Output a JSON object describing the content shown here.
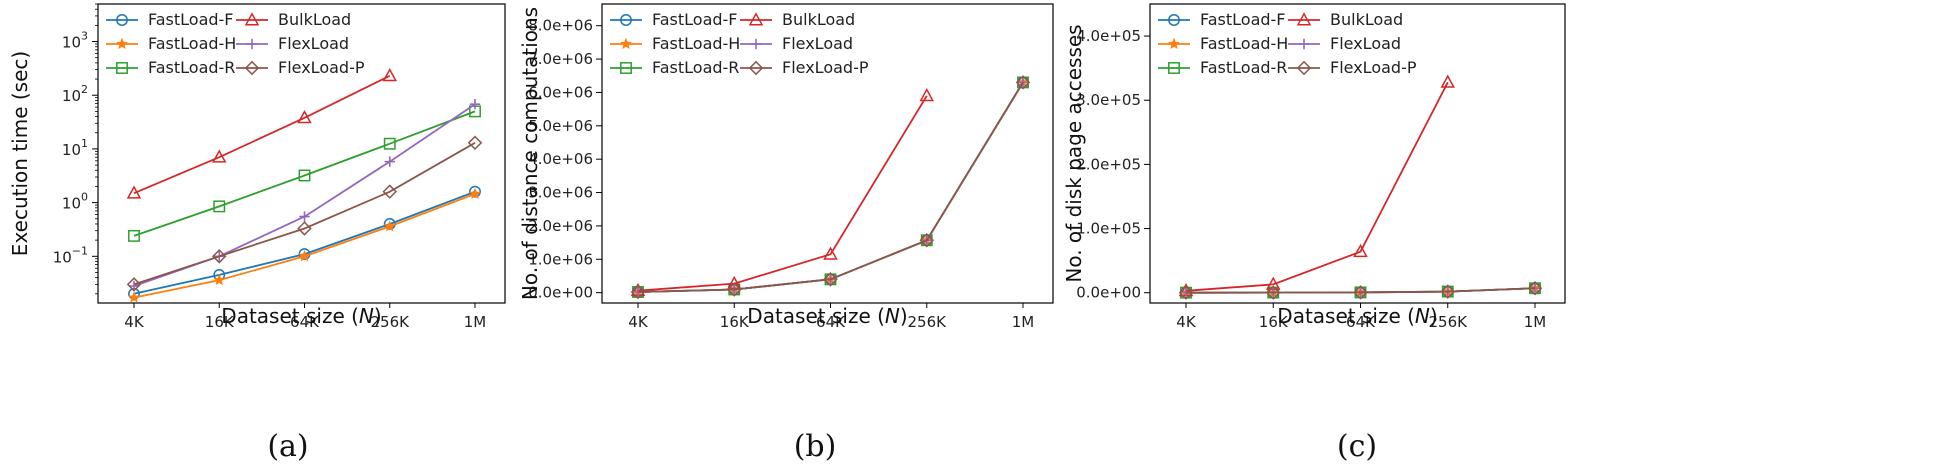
{
  "chart_data": [
    {
      "type": "line",
      "yscale": "log",
      "panel_caption": "(a)",
      "xlabel": "Dataset size (N)",
      "ylabel": "Execution time (sec)",
      "categories": [
        "4K",
        "16K",
        "64K",
        "256K",
        "1M"
      ],
      "yticks": [
        {
          "value": 0.1,
          "mantissa": "10",
          "exp": "−1"
        },
        {
          "value": 1,
          "mantissa": "10",
          "exp": "0"
        },
        {
          "value": 10,
          "mantissa": "10",
          "exp": "1"
        },
        {
          "value": 100,
          "mantissa": "10",
          "exp": "2"
        },
        {
          "value": 1000,
          "mantissa": "10",
          "exp": "3"
        }
      ],
      "ylim": [
        0.0135,
        5000
      ],
      "series": [
        {
          "name": "FastLoad-F",
          "color": "#1f77b4",
          "marker": "circle",
          "values": [
            0.02,
            0.045,
            0.11,
            0.4,
            1.6
          ]
        },
        {
          "name": "FastLoad-H",
          "color": "#ff7f0e",
          "marker": "star",
          "values": [
            0.017,
            0.036,
            0.1,
            0.36,
            1.45
          ]
        },
        {
          "name": "FastLoad-R",
          "color": "#2ca02c",
          "marker": "square",
          "values": [
            0.24,
            0.85,
            3.2,
            12.5,
            50
          ]
        },
        {
          "name": "BulkLoad",
          "color": "#d62728",
          "marker": "triangle",
          "values": [
            1.5,
            7.0,
            38,
            230,
            null
          ]
        },
        {
          "name": "FlexLoad",
          "color": "#9467bd",
          "marker": "plus",
          "values": [
            0.028,
            0.1,
            0.55,
            5.8,
            68
          ]
        },
        {
          "name": "FlexLoad-P",
          "color": "#8c564b",
          "marker": "diamond",
          "values": [
            0.03,
            0.1,
            0.33,
            1.6,
            13
          ]
        }
      ]
    },
    {
      "type": "line",
      "yscale": "linear",
      "panel_caption": "(b)",
      "xlabel": "Dataset size (N)",
      "ylabel": "No. of distance computations",
      "categories": [
        "4K",
        "16K",
        "64K",
        "256K",
        "1M"
      ],
      "ytick_values": [
        0,
        1000000,
        2000000,
        3000000,
        4000000,
        5000000,
        6000000,
        7000000,
        8000000
      ],
      "ytick_labels": [
        "0.0e+00",
        "1.0e+06",
        "2.0e+06",
        "3.0e+06",
        "4.0e+06",
        "5.0e+06",
        "6.0e+06",
        "7.0e+06",
        "8.0e+06"
      ],
      "ylim": [
        -310000,
        8650000
      ],
      "series": [
        {
          "name": "FastLoad-F",
          "color": "#1f77b4",
          "marker": "circle",
          "values": [
            20000,
            95000,
            400000,
            1570000,
            6300000
          ]
        },
        {
          "name": "FastLoad-H",
          "color": "#ff7f0e",
          "marker": "star",
          "values": [
            20000,
            95000,
            400000,
            1570000,
            6300000
          ]
        },
        {
          "name": "FastLoad-R",
          "color": "#2ca02c",
          "marker": "square",
          "values": [
            20000,
            95000,
            400000,
            1570000,
            6300000
          ]
        },
        {
          "name": "BulkLoad",
          "color": "#d62728",
          "marker": "triangle",
          "values": [
            60000,
            270000,
            1150000,
            5900000,
            null
          ]
        },
        {
          "name": "FlexLoad",
          "color": "#9467bd",
          "marker": "plus",
          "values": [
            20000,
            95000,
            400000,
            1570000,
            6300000
          ]
        },
        {
          "name": "FlexLoad-P",
          "color": "#8c564b",
          "marker": "diamond",
          "values": [
            20000,
            95000,
            400000,
            1570000,
            6300000
          ]
        }
      ]
    },
    {
      "type": "line",
      "yscale": "linear",
      "panel_caption": "(c)",
      "xlabel": "Dataset size (N)",
      "ylabel": "No. of disk page accesses",
      "categories": [
        "4K",
        "16K",
        "64K",
        "256K",
        "1M"
      ],
      "ytick_values": [
        0,
        100000,
        200000,
        300000,
        400000
      ],
      "ytick_labels": [
        "0.0e+00",
        "1.0e+05",
        "2.0e+05",
        "3.0e+05",
        "4.0e+05"
      ],
      "ylim": [
        -16000,
        450000
      ],
      "series": [
        {
          "name": "FastLoad-F",
          "color": "#1f77b4",
          "marker": "circle",
          "values": [
            100,
            200,
            500,
            1800,
            7000
          ]
        },
        {
          "name": "FastLoad-H",
          "color": "#ff7f0e",
          "marker": "star",
          "values": [
            100,
            200,
            500,
            1800,
            7000
          ]
        },
        {
          "name": "FastLoad-R",
          "color": "#2ca02c",
          "marker": "square",
          "values": [
            100,
            200,
            500,
            1800,
            7000
          ]
        },
        {
          "name": "BulkLoad",
          "color": "#d62728",
          "marker": "triangle",
          "values": [
            3000,
            13000,
            64000,
            328000,
            null
          ]
        },
        {
          "name": "FlexLoad",
          "color": "#9467bd",
          "marker": "plus",
          "values": [
            100,
            200,
            500,
            1800,
            7000
          ]
        },
        {
          "name": "FlexLoad-P",
          "color": "#8c564b",
          "marker": "diamond",
          "values": [
            100,
            200,
            500,
            1800,
            7000
          ]
        }
      ]
    }
  ]
}
